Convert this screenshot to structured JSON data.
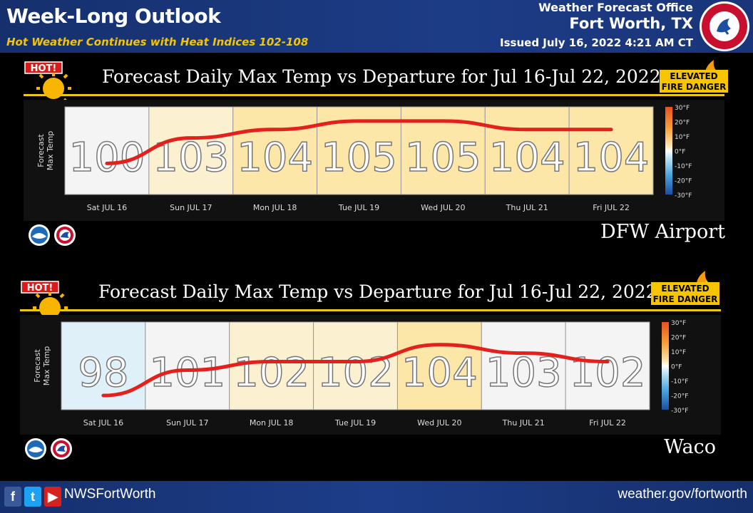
{
  "header": {
    "title": "Week-Long Outlook",
    "subtitle": "Hot Weather Continues with Heat Indices 102-108",
    "office": "Weather Forecast Office",
    "city": "Fort Worth, TX",
    "issued": "Issued July 16, 2022 4:21 AM CT"
  },
  "badges": {
    "hot": "HOT!",
    "fire_line1": "ELEVATED",
    "fire_line2": "FIRE DANGER"
  },
  "footer": {
    "handle": "NWSFortWorth",
    "url": "weather.gov/fortworth"
  },
  "colors": {
    "header_bg": "#1c3c86",
    "subtitle": "#f5c400",
    "accent": "#f0c419",
    "trend_line": "#e3201b",
    "dep_0": "#f4f4f4",
    "dep_5": "#fbf0d0",
    "dep_10": "#fce6a8",
    "dep_minus5": "#dff0f8"
  },
  "chart_data": [
    {
      "type": "bar",
      "title": "Forecast Daily Max Temp vs Departure for Jul 16-Jul 22, 2022",
      "station": "DFW Airport",
      "ylabel": "Forecast Max Temp",
      "categories": [
        "Sat JUL 16",
        "Sun JUL 17",
        "Mon JUL 18",
        "Tue JUL 19",
        "Wed JUL 20",
        "Thu JUL 21",
        "Fri JUL 22"
      ],
      "values": [
        100,
        103,
        104,
        105,
        105,
        104,
        104
      ],
      "departure": [
        0,
        6,
        7,
        8,
        8,
        7,
        7
      ],
      "legend": {
        "type": "colorbar",
        "placement": "right",
        "ticks": [
          "30°F",
          "20°F",
          "10°F",
          "0°F",
          "-10°F",
          "-20°F",
          "-30°F"
        ],
        "range": [
          -30,
          30
        ]
      }
    },
    {
      "type": "bar",
      "title": "Forecast Daily Max Temp vs Departure for Jul 16-Jul 22, 2022",
      "station": "Waco",
      "ylabel": "Forecast Max Temp",
      "categories": [
        "Sat JUL 16",
        "Sun JUL 17",
        "Mon JUL 18",
        "Tue JUL 19",
        "Wed JUL 20",
        "Thu JUL 21",
        "Fri JUL 22"
      ],
      "values": [
        98,
        101,
        102,
        102,
        104,
        103,
        102
      ],
      "departure": [
        -3,
        1,
        3,
        3,
        7,
        2,
        1
      ],
      "legend": {
        "type": "colorbar",
        "placement": "right",
        "ticks": [
          "30°F",
          "20°F",
          "10°F",
          "0°F",
          "-10°F",
          "-20°F",
          "-30°F"
        ],
        "range": [
          -30,
          30
        ]
      }
    }
  ]
}
